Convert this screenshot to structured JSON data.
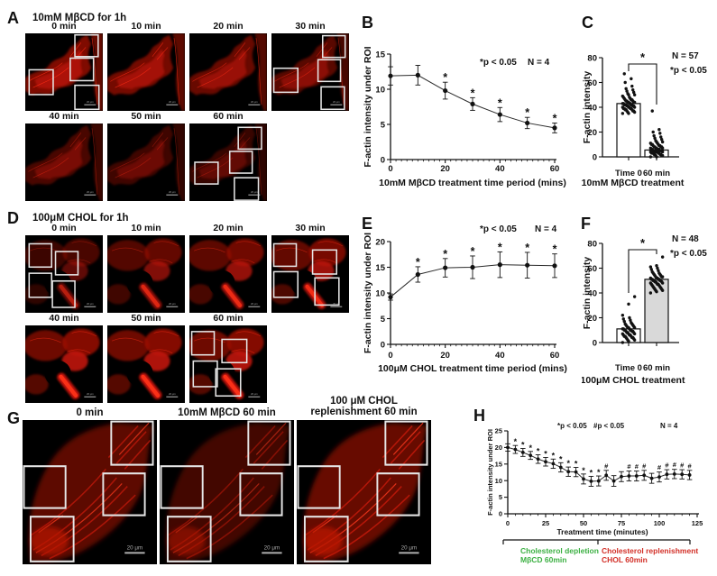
{
  "letters": {
    "A": "A",
    "B": "B",
    "C": "C",
    "D": "D",
    "E": "E",
    "F": "F",
    "G": "G",
    "H": "H"
  },
  "colors": {
    "micro_red": "#b01206",
    "green_label": "#3cb043",
    "red_label": "#d22f27",
    "bar_gray": "#d9d9d9"
  },
  "microscopy": {
    "A": {
      "title": "10mM MβCD for 1h",
      "variant": "A",
      "scale_bar": "20 μm",
      "intensities": [
        1,
        0.92,
        0.82,
        0.7,
        0.58,
        0.5,
        0.44
      ],
      "tiles": [
        {
          "label": "0 min",
          "rois": [
            [
              64,
              2,
              30,
              28
            ],
            [
              58,
              32,
              30,
              29
            ],
            [
              5,
              47,
              31,
              32
            ],
            [
              64,
              67,
              31,
              31
            ]
          ]
        },
        {
          "label": "10 min",
          "rois": []
        },
        {
          "label": "20 min",
          "rois": []
        },
        {
          "label": "30 min",
          "rois": [
            [
              66,
              3,
              29,
              28
            ],
            [
              60,
              34,
              29,
              28
            ],
            [
              3,
              45,
              31,
              31
            ],
            [
              64,
              69,
              30,
              29
            ]
          ]
        },
        {
          "label": "40 min",
          "rois": []
        },
        {
          "label": "50 min",
          "rois": []
        },
        {
          "label": "60 min",
          "rois": [
            [
              63,
              5,
              30,
              28
            ],
            [
              52,
              36,
              29,
              28
            ],
            [
              7,
              50,
              30,
              28
            ],
            [
              58,
              70,
              31,
              29
            ]
          ]
        }
      ]
    },
    "D": {
      "title": "100μM CHOL for 1h",
      "variant": "D",
      "scale_bar": "20 μm",
      "intensities": [
        0.55,
        0.75,
        0.85,
        0.9,
        1,
        1,
        1
      ],
      "tiles": [
        {
          "label": "0 min",
          "rois": [
            [
              5,
              11,
              29,
              30
            ],
            [
              39,
              21,
              29,
              30
            ],
            [
              5,
              49,
              29,
              31
            ],
            [
              35,
              59,
              29,
              34
            ]
          ]
        },
        {
          "label": "10 min",
          "rois": []
        },
        {
          "label": "20 min",
          "rois": []
        },
        {
          "label": "30 min",
          "rois": [
            [
              3,
              11,
              29,
              29
            ],
            [
              53,
              19,
              31,
              31
            ],
            [
              3,
              47,
              31,
              33
            ],
            [
              56,
              55,
              31,
              35
            ]
          ]
        },
        {
          "label": "40 min",
          "rois": []
        },
        {
          "label": "50 min",
          "rois": []
        },
        {
          "label": "60 min",
          "rois": [
            [
              3,
              8,
              29,
              30
            ],
            [
              42,
              18,
              32,
              30
            ],
            [
              5,
              46,
              31,
              33
            ],
            [
              34,
              56,
              32,
              35
            ]
          ]
        }
      ]
    },
    "G": {
      "title": "",
      "variant": "G",
      "scale_bar": "20 μm",
      "intensities": [
        0.9,
        0.65,
        1
      ],
      "tiles": [
        {
          "label": [
            "0 min"
          ],
          "rois": [
            [
              66,
              1,
              31,
              30
            ],
            [
              1,
              32,
              31,
              29
            ],
            [
              60,
              37,
              31,
              29
            ],
            [
              6,
              67,
              32,
              31
            ]
          ]
        },
        {
          "label": [
            "10mM MβCD 60 min"
          ],
          "rois": [
            [
              66,
              1,
              31,
              30
            ],
            [
              1,
              32,
              31,
              29
            ],
            [
              60,
              37,
              31,
              29
            ],
            [
              6,
              67,
              32,
              31
            ]
          ]
        },
        {
          "label": [
            "100 μM CHOL",
            "replenishment 60 min"
          ],
          "rois": [
            [
              66,
              1,
              31,
              30
            ],
            [
              1,
              32,
              31,
              29
            ],
            [
              60,
              37,
              31,
              29
            ],
            [
              6,
              67,
              32,
              31
            ]
          ]
        }
      ]
    }
  },
  "chart_data": [
    {
      "panel": "B",
      "type": "line",
      "xlabel": "10mM MβCD treatment time period (mins)",
      "ylabel": "F-actin intensity under ROI",
      "x": [
        0,
        10,
        20,
        30,
        40,
        50,
        60
      ],
      "y": [
        11.9,
        12.0,
        9.8,
        7.9,
        6.4,
        5.2,
        4.5
      ],
      "err": [
        1.3,
        1.4,
        1.2,
        0.9,
        1.0,
        0.8,
        0.7
      ],
      "sig": [
        "",
        "",
        "*",
        "*",
        "*",
        "*",
        "*"
      ],
      "xlim": [
        0,
        60
      ],
      "ylim": [
        0,
        15
      ],
      "xticks": [
        0,
        20,
        40,
        60
      ],
      "yticks": [
        0,
        5,
        10,
        15
      ],
      "xminor": 2,
      "annotations": [
        "*p < 0.05",
        "N = 4"
      ]
    },
    {
      "panel": "C",
      "type": "bar-scatter",
      "xlabel": "10mM MβCD treatment",
      "ylabel": "F-actin intensity",
      "categories": [
        "Time 0",
        "60 min"
      ],
      "means": [
        43,
        5.5
      ],
      "bar_fills": [
        "#ffffff",
        "#ffffff"
      ],
      "points": [
        [
          35,
          35,
          36,
          36,
          37,
          37,
          37,
          38,
          38,
          38,
          39,
          39,
          39,
          39,
          40,
          40,
          40,
          40,
          41,
          41,
          41,
          41,
          42,
          42,
          42,
          42,
          42,
          43,
          43,
          43,
          43,
          44,
          44,
          44,
          44,
          45,
          45,
          45,
          46,
          46,
          46,
          47,
          47,
          48,
          48,
          49,
          50,
          50,
          51,
          52,
          53,
          54,
          55,
          57,
          60,
          63,
          67
        ],
        [
          0,
          0,
          1,
          1,
          1,
          2,
          2,
          2,
          2,
          3,
          3,
          3,
          3,
          3,
          4,
          4,
          4,
          4,
          4,
          5,
          5,
          5,
          5,
          5,
          5,
          6,
          6,
          6,
          6,
          6,
          7,
          7,
          7,
          7,
          8,
          8,
          8,
          8,
          9,
          9,
          9,
          10,
          10,
          10,
          11,
          11,
          12,
          12,
          13,
          14,
          15,
          16,
          17,
          19,
          20,
          22,
          37
        ]
      ],
      "ylim": [
        0,
        80
      ],
      "yticks": [
        0,
        20,
        40,
        60,
        80
      ],
      "annotations": [
        "N = 57",
        "*p < 0.05"
      ],
      "sig_bracket": "*"
    },
    {
      "panel": "E",
      "type": "line",
      "xlabel": "100μM CHOL treatment time period (mins)",
      "ylabel": "F-actin intensity under ROI",
      "x": [
        0,
        10,
        20,
        30,
        40,
        50,
        60
      ],
      "y": [
        9.2,
        13.6,
        14.9,
        15.0,
        15.5,
        15.4,
        15.3
      ],
      "err": [
        0.6,
        1.5,
        1.8,
        2.2,
        2.5,
        2.5,
        2.3
      ],
      "sig": [
        "",
        "*",
        "*",
        "*",
        "*",
        "*",
        "*"
      ],
      "xlim": [
        0,
        60
      ],
      "ylim": [
        0,
        20
      ],
      "xticks": [
        0,
        20,
        40,
        60
      ],
      "yticks": [
        0,
        5,
        10,
        15,
        20
      ],
      "xminor": 2,
      "annotations": [
        "*p < 0.05",
        "N = 4"
      ]
    },
    {
      "panel": "F",
      "type": "bar-scatter",
      "xlabel": "100μM CHOL treatment",
      "ylabel": "F-actin intensity",
      "categories": [
        "Time 0",
        "60 min"
      ],
      "means": [
        11,
        51
      ],
      "bar_fills": [
        "#ffffff",
        "#d9d9d9"
      ],
      "points": [
        [
          0,
          1,
          2,
          2,
          3,
          3,
          4,
          4,
          4,
          5,
          5,
          5,
          6,
          6,
          6,
          7,
          7,
          7,
          8,
          8,
          8,
          9,
          9,
          9,
          10,
          10,
          10,
          10,
          11,
          11,
          11,
          12,
          12,
          12,
          13,
          13,
          14,
          14,
          15,
          15,
          16,
          17,
          18,
          19,
          20,
          22,
          31,
          37
        ],
        [
          40,
          41,
          42,
          42,
          43,
          43,
          44,
          44,
          45,
          45,
          46,
          46,
          47,
          47,
          47,
          48,
          48,
          48,
          49,
          49,
          49,
          50,
          50,
          50,
          50,
          51,
          51,
          51,
          51,
          52,
          52,
          52,
          53,
          53,
          53,
          54,
          54,
          55,
          55,
          56,
          56,
          57,
          58,
          59,
          60,
          61,
          62,
          69
        ]
      ],
      "ylim": [
        0,
        80
      ],
      "yticks": [
        0,
        20,
        40,
        60,
        80
      ],
      "annotations": [
        "N = 48",
        "*p < 0.05"
      ],
      "sig_bracket": "*"
    },
    {
      "panel": "H",
      "type": "line",
      "xlabel": "Treatment time (minutes)",
      "ylabel": "F-actin intensity under ROI",
      "x": [
        0,
        5,
        10,
        15,
        20,
        25,
        30,
        35,
        40,
        45,
        50,
        55,
        60,
        65,
        70,
        75,
        80,
        85,
        90,
        95,
        100,
        105,
        110,
        115,
        120
      ],
      "y": [
        20.0,
        19.4,
        18.5,
        17.6,
        16.5,
        15.7,
        15.1,
        14.0,
        12.7,
        12.6,
        10.5,
        9.8,
        9.9,
        11.6,
        9.9,
        11.2,
        11.4,
        11.4,
        11.6,
        10.7,
        11.1,
        11.9,
        12.0,
        11.9,
        11.7
      ],
      "err": [
        1.1,
        1.2,
        1.2,
        1.2,
        1.3,
        1.3,
        1.4,
        1.4,
        1.4,
        1.4,
        1.5,
        1.5,
        1.5,
        1.5,
        1.6,
        1.5,
        1.5,
        1.5,
        1.5,
        1.5,
        1.5,
        1.4,
        1.4,
        1.4,
        1.4
      ],
      "sig": [
        "",
        "*",
        "*",
        "*",
        "*",
        "*",
        "*",
        "*",
        "*",
        "*",
        "*",
        "*",
        "*",
        "#",
        "",
        "",
        "#",
        "#",
        "#",
        "",
        "#",
        "#",
        "#",
        "#",
        "#"
      ],
      "xlim": [
        0,
        125
      ],
      "ylim": [
        0,
        25
      ],
      "xticks": [
        0,
        25,
        50,
        75,
        100,
        125
      ],
      "yticks": [
        0,
        5,
        10,
        15,
        20,
        25
      ],
      "xminor": 5,
      "annotations": [
        "*p < 0.05",
        "#p < 0.05",
        "N = 4"
      ],
      "footer": {
        "groups": [
          {
            "lines": [
              "Cholesterol depletion",
              "MβCD 60min"
            ],
            "color": "#3cb043"
          },
          {
            "lines": [
              "Cholesterol replenishment",
              "CHOL 60min"
            ],
            "color": "#d22f27"
          }
        ]
      }
    }
  ]
}
